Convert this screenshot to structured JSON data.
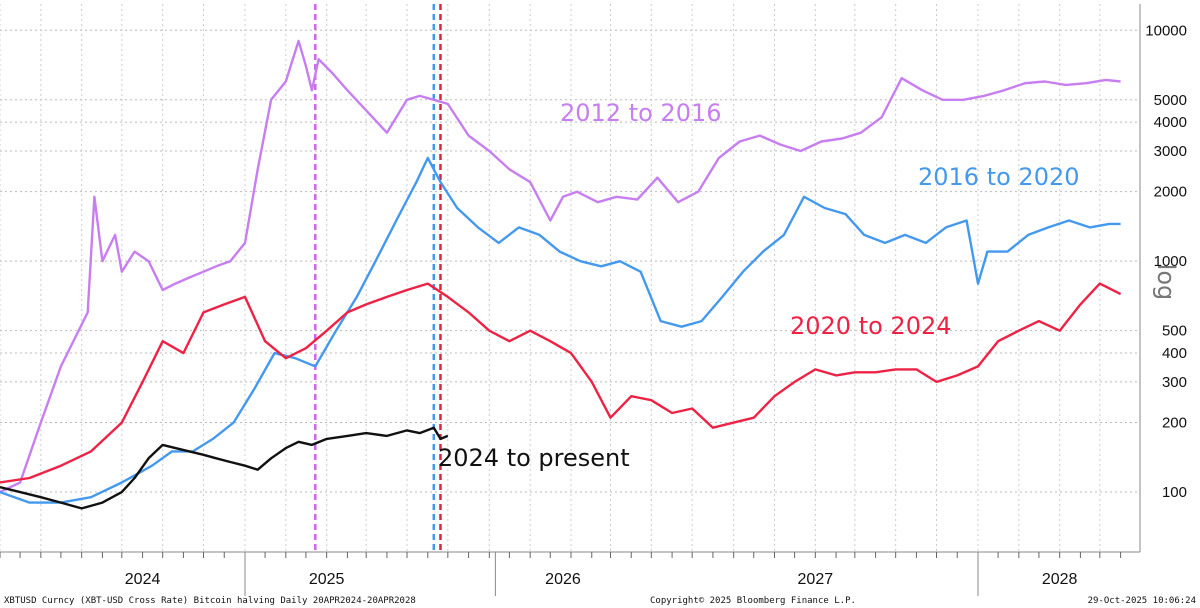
{
  "chart_data": {
    "type": "line",
    "ylabel": "log",
    "yscale": "log",
    "ylim": [
      55,
      13000
    ],
    "xlim": [
      "2023-09-01",
      "2028-04-30"
    ],
    "grid": true,
    "yticks": [
      100,
      200,
      300,
      400,
      500,
      1000,
      2000,
      3000,
      4000,
      5000,
      10000
    ],
    "xticks": [
      {
        "label": "2024",
        "date": "2024-04-01"
      },
      {
        "label": "2025",
        "date": "2025-01-01"
      },
      {
        "label": "2026",
        "date": "2025-12-20"
      },
      {
        "label": "2027",
        "date": "2027-01-01"
      },
      {
        "label": "2028",
        "date": "2028-01-01"
      }
    ],
    "year_dividers": [
      "2024-09-01",
      "2025-09-10",
      "2027-09-01"
    ],
    "vlines": [
      {
        "date": "2024-12-15",
        "color": "#cc66ee"
      },
      {
        "date": "2025-06-10",
        "color": "#4499ee"
      },
      {
        "date": "2025-06-20",
        "color": "#dd2244"
      }
    ],
    "series": [
      {
        "name": "2012 to 2016",
        "color": "#c77ef0",
        "x": [
          "2023-09-01",
          "2023-10-01",
          "2023-11-01",
          "2023-12-01",
          "2024-01-10",
          "2024-01-20",
          "2024-02-01",
          "2024-02-20",
          "2024-03-01",
          "2024-03-20",
          "2024-04-10",
          "2024-05-01",
          "2024-05-20",
          "2024-06-10",
          "2024-07-01",
          "2024-07-20",
          "2024-08-10",
          "2024-09-01",
          "2024-09-20",
          "2024-10-10",
          "2024-11-01",
          "2024-11-20",
          "2024-12-01",
          "2024-12-10",
          "2024-12-20",
          "2025-01-10",
          "2025-02-01",
          "2025-03-01",
          "2025-04-01",
          "2025-05-01",
          "2025-05-20",
          "2025-06-10",
          "2025-07-01",
          "2025-08-01",
          "2025-09-01",
          "2025-10-01",
          "2025-11-01",
          "2025-12-01",
          "2025-12-20",
          "2026-01-10",
          "2026-02-10",
          "2026-03-10",
          "2026-04-10",
          "2026-05-10",
          "2026-06-10",
          "2026-07-10",
          "2026-08-10",
          "2026-09-10",
          "2026-10-10",
          "2026-11-10",
          "2026-12-10",
          "2027-01-10",
          "2027-02-10",
          "2027-03-10",
          "2027-04-10",
          "2027-05-10",
          "2027-06-10",
          "2027-07-10",
          "2027-08-10",
          "2027-09-10",
          "2027-10-10",
          "2027-11-10",
          "2027-12-10",
          "2028-01-10",
          "2028-02-10",
          "2028-03-10",
          "2028-04-01"
        ],
        "y": [
          100,
          110,
          200,
          350,
          600,
          1900,
          1000,
          1300,
          900,
          1100,
          1000,
          750,
          800,
          850,
          900,
          950,
          1000,
          1200,
          2500,
          5000,
          6000,
          9000,
          7000,
          5500,
          7500,
          6500,
          5500,
          4500,
          3600,
          5000,
          5200,
          5000,
          4800,
          3500,
          3000,
          2500,
          2200,
          1500,
          1900,
          2000,
          1800,
          1900,
          1850,
          2300,
          1800,
          2000,
          2800,
          3300,
          3500,
          3200,
          3000,
          3300,
          3400,
          3600,
          4200,
          6200,
          5500,
          5000,
          5000,
          5200,
          5500,
          5900,
          6000,
          5800,
          5900,
          6100,
          6000
        ]
      },
      {
        "name": "2016 to 2020",
        "color": "#4499ee",
        "x": [
          "2023-09-01",
          "2023-10-15",
          "2023-12-01",
          "2024-01-15",
          "2024-03-01",
          "2024-04-15",
          "2024-05-15",
          "2024-06-15",
          "2024-07-15",
          "2024-08-15",
          "2024-09-15",
          "2024-10-15",
          "2024-11-15",
          "2024-12-15",
          "2025-01-15",
          "2025-02-15",
          "2025-03-15",
          "2025-04-15",
          "2025-05-15",
          "2025-06-01",
          "2025-06-20",
          "2025-07-15",
          "2025-08-15",
          "2025-09-15",
          "2025-10-15",
          "2025-11-15",
          "2025-12-15",
          "2026-01-15",
          "2026-02-15",
          "2026-03-15",
          "2026-04-15",
          "2026-05-15",
          "2026-06-15",
          "2026-07-15",
          "2026-08-15",
          "2026-09-15",
          "2026-10-15",
          "2026-11-15",
          "2026-12-15",
          "2027-01-15",
          "2027-02-15",
          "2027-03-15",
          "2027-04-15",
          "2027-05-15",
          "2027-06-15",
          "2027-07-15",
          "2027-08-15",
          "2027-09-01",
          "2027-09-15",
          "2027-10-15",
          "2027-11-15",
          "2027-12-15",
          "2028-01-15",
          "2028-02-15",
          "2028-03-15",
          "2028-04-01"
        ],
        "y": [
          100,
          90,
          90,
          95,
          110,
          130,
          150,
          150,
          170,
          200,
          280,
          400,
          380,
          350,
          500,
          700,
          1000,
          1500,
          2200,
          2800,
          2200,
          1700,
          1400,
          1200,
          1400,
          1300,
          1100,
          1000,
          950,
          1000,
          900,
          550,
          520,
          550,
          700,
          900,
          1100,
          1300,
          1900,
          1700,
          1600,
          1300,
          1200,
          1300,
          1200,
          1400,
          1500,
          800,
          1100,
          1100,
          1300,
          1400,
          1500,
          1400,
          1450,
          1450
        ]
      },
      {
        "name": "2020 to 2024",
        "color": "#ee2244",
        "x": [
          "2023-09-01",
          "2023-10-15",
          "2023-12-01",
          "2024-01-15",
          "2024-03-01",
          "2024-04-01",
          "2024-05-01",
          "2024-06-01",
          "2024-07-01",
          "2024-08-01",
          "2024-09-01",
          "2024-10-01",
          "2024-11-01",
          "2024-12-01",
          "2025-01-01",
          "2025-02-01",
          "2025-03-01",
          "2025-04-01",
          "2025-05-01",
          "2025-06-01",
          "2025-07-01",
          "2025-08-01",
          "2025-09-01",
          "2025-10-01",
          "2025-11-01",
          "2025-12-01",
          "2026-01-01",
          "2026-02-01",
          "2026-03-01",
          "2026-04-01",
          "2026-05-01",
          "2026-06-01",
          "2026-07-01",
          "2026-08-01",
          "2026-09-01",
          "2026-10-01",
          "2026-11-01",
          "2026-12-01",
          "2027-01-01",
          "2027-02-01",
          "2027-03-01",
          "2027-04-01",
          "2027-05-01",
          "2027-06-01",
          "2027-07-01",
          "2027-08-01",
          "2027-09-01",
          "2027-10-01",
          "2027-11-01",
          "2027-12-01",
          "2028-01-01",
          "2028-02-01",
          "2028-03-01",
          "2028-04-01"
        ],
        "y": [
          110,
          115,
          130,
          150,
          200,
          300,
          450,
          400,
          600,
          650,
          700,
          450,
          380,
          420,
          500,
          600,
          650,
          700,
          750,
          800,
          700,
          600,
          500,
          450,
          500,
          450,
          400,
          300,
          210,
          260,
          250,
          220,
          230,
          190,
          200,
          210,
          260,
          300,
          340,
          320,
          330,
          330,
          340,
          340,
          300,
          320,
          350,
          450,
          500,
          550,
          500,
          650,
          800,
          720
        ]
      },
      {
        "name": "2024 to present",
        "color": "#111111",
        "x": [
          "2023-09-01",
          "2023-10-01",
          "2023-11-01",
          "2023-12-01",
          "2024-01-01",
          "2024-02-01",
          "2024-03-01",
          "2024-03-20",
          "2024-04-10",
          "2024-05-01",
          "2024-05-20",
          "2024-06-10",
          "2024-07-01",
          "2024-07-20",
          "2024-08-10",
          "2024-09-01",
          "2024-09-20",
          "2024-10-10",
          "2024-11-01",
          "2024-11-20",
          "2024-12-10",
          "2025-01-01",
          "2025-02-01",
          "2025-03-01",
          "2025-04-01",
          "2025-05-01",
          "2025-05-20",
          "2025-06-10",
          "2025-06-20",
          "2025-07-01"
        ],
        "y": [
          105,
          100,
          95,
          90,
          85,
          90,
          100,
          115,
          140,
          160,
          155,
          150,
          145,
          140,
          135,
          130,
          125,
          140,
          155,
          165,
          160,
          170,
          175,
          180,
          175,
          185,
          180,
          190,
          170,
          175
        ]
      }
    ]
  },
  "footer": {
    "left": "XBTUSD Curncy (XBT-USD Cross Rate) Bitcoin halving Daily 20APR2024-20APR2028",
    "center": "Copyright© 2025 Bloomberg Finance L.P.",
    "right": "29-Oct-2025 10:06:24"
  }
}
